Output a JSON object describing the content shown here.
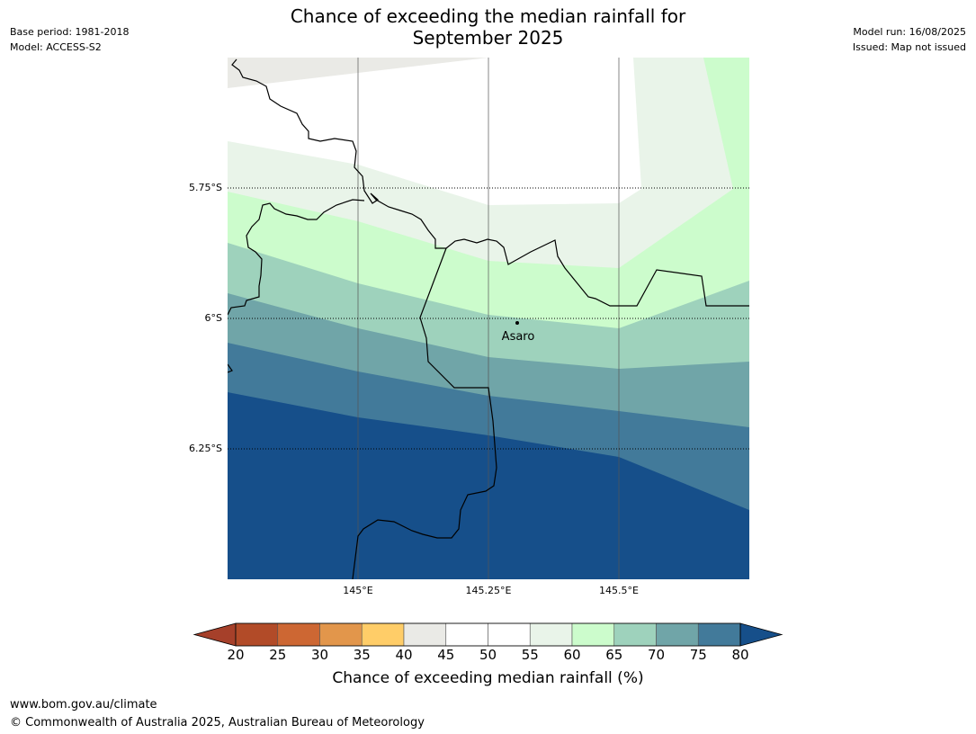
{
  "header": {
    "title_line1": "Chance of exceeding the median rainfall for",
    "title_line2": "September 2025",
    "base_period": "Base period: 1981-2018",
    "model": "Model: ACCESS-S2",
    "model_run": "Model run: 16/08/2025",
    "issued": "Issued: Map not issued"
  },
  "map": {
    "lat_labels": [
      "5.75°S",
      "6°S",
      "6.25°S"
    ],
    "lon_labels": [
      "145°E",
      "145.25°E",
      "145.5°E"
    ],
    "place": "Asaro",
    "colors": {
      "c30": "#e2964b",
      "c40": "#eaeae6",
      "c50": "#ffffff",
      "c55": "#e9f4e9",
      "c60": "#ccfccc",
      "c65": "#9ed2bc",
      "c70": "#70a5a8",
      "c75": "#427a9a",
      "c80": "#164f8a"
    }
  },
  "colorbar": {
    "label": "Chance of exceeding median rainfall (%)",
    "ticks": [
      "20",
      "25",
      "30",
      "35",
      "40",
      "45",
      "50",
      "55",
      "60",
      "65",
      "70",
      "75",
      "80"
    ],
    "colors": [
      "#a6402a",
      "#b24b28",
      "#cd6733",
      "#e2964b",
      "#ffcd68",
      "#eaeae6",
      "#ffffff",
      "#ffffff",
      "#e9f4e9",
      "#ccfccc",
      "#9ed2bc",
      "#70a5a8",
      "#427a9a",
      "#164f8a"
    ]
  },
  "footer": {
    "url": "www.bom.gov.au/climate",
    "copyright": "© Commonwealth of Australia 2025, Australian Bureau of Meteorology"
  }
}
